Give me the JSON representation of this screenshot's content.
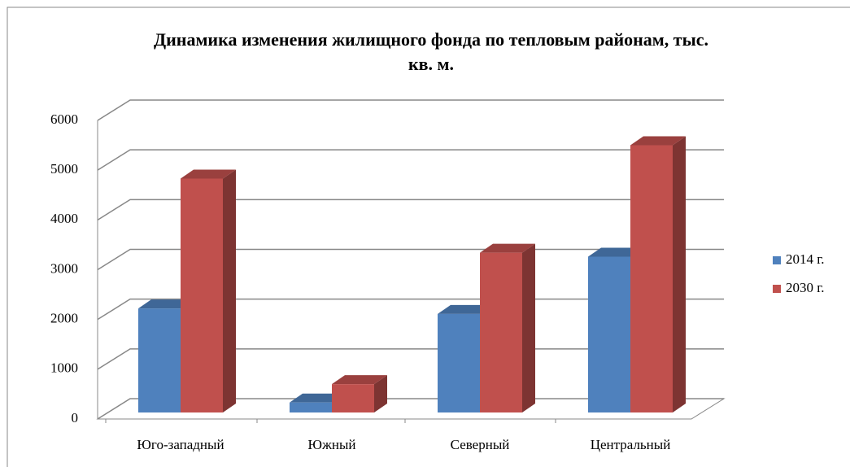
{
  "chart_data": {
    "type": "bar3d",
    "title": "Динамика изменения жилищного фонда по тепловым районам, тыс. кв. м.",
    "categories": [
      "Юго-западный",
      "Южный",
      "Северный",
      "Центральный"
    ],
    "series": [
      {
        "name": "2014 г.",
        "color": "#4f81bd",
        "values": [
          2090,
          200,
          1980,
          3130
        ]
      },
      {
        "name": "2030 г.",
        "color": "#c0504d",
        "values": [
          4700,
          570,
          3210,
          5370
        ]
      }
    ],
    "ylim": [
      0,
      6000
    ],
    "yticks": [
      0,
      1000,
      2000,
      3000,
      4000,
      5000,
      6000
    ],
    "grid": true,
    "legend": "right"
  }
}
